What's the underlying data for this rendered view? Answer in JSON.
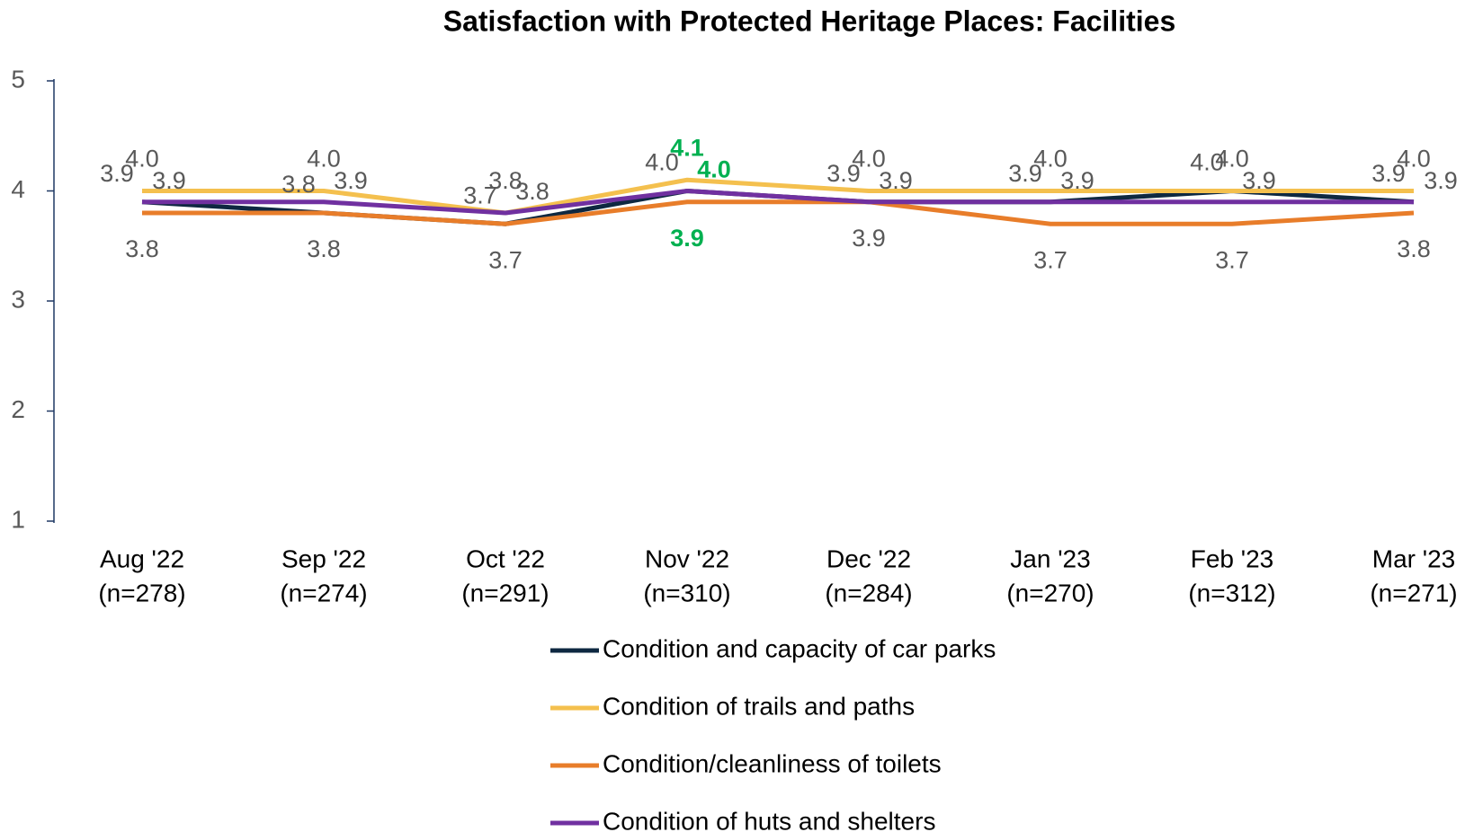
{
  "chart_data": {
    "type": "line",
    "title": "Satisfaction with Protected Heritage Places: Facilities",
    "categories": [
      "Aug '22",
      "Sep '22",
      "Oct '22",
      "Nov '22",
      "Dec '22",
      "Jan '23",
      "Feb '23",
      "Mar '23"
    ],
    "sample_sizes": [
      "(n=278)",
      "(n=274)",
      "(n=291)",
      "(n=310)",
      "(n=284)",
      "(n=270)",
      "(n=312)",
      "(n=271)"
    ],
    "ylim": [
      1,
      5
    ],
    "yticks": [
      1,
      2,
      3,
      4,
      5
    ],
    "grid": false,
    "legend": "bottom",
    "series": [
      {
        "name": "Condition and capacity of car parks",
        "color": "#0e2841",
        "values": [
          3.9,
          3.8,
          3.7,
          4.0,
          3.9,
          3.9,
          4.0,
          3.9
        ],
        "value_labels": [
          "3.9",
          "3.8",
          "3.7",
          "4.0",
          "3.9",
          "3.9",
          "4.0",
          "3.9"
        ],
        "value_label_colors": [
          "#595959",
          "#595959",
          "#595959",
          "#595959",
          "#595959",
          "#595959",
          "#595959",
          "#595959"
        ]
      },
      {
        "name": "Condition of trails and paths",
        "color": "#f4c04e",
        "values": [
          4.0,
          4.0,
          3.8,
          4.1,
          4.0,
          4.0,
          4.0,
          4.0
        ],
        "value_labels": [
          "4.0",
          "4.0",
          "3.8",
          "4.1",
          "4.0",
          "4.0",
          "4.0",
          "4.0"
        ],
        "value_label_colors": [
          "#595959",
          "#595959",
          "#595959",
          "#00b050",
          "#595959",
          "#595959",
          "#595959",
          "#595959"
        ]
      },
      {
        "name": "Condition/cleanliness of toilets",
        "color": "#e87d2a",
        "values": [
          3.8,
          3.8,
          3.7,
          3.9,
          3.9,
          3.7,
          3.7,
          3.8
        ],
        "value_labels": [
          "3.8",
          "3.8",
          "3.7",
          "3.9",
          "3.9",
          "3.7",
          "3.7",
          "3.8"
        ],
        "value_label_colors": [
          "#595959",
          "#595959",
          "#595959",
          "#00b050",
          "#595959",
          "#595959",
          "#595959",
          "#595959"
        ]
      },
      {
        "name": "Condition of huts and shelters",
        "color": "#7030a0",
        "values": [
          3.9,
          3.9,
          3.8,
          4.0,
          3.9,
          3.9,
          3.9,
          3.9
        ],
        "value_labels": [
          "3.9",
          "3.9",
          "3.8",
          "4.0",
          "3.9",
          "3.9",
          "3.9",
          "3.9"
        ],
        "value_label_colors": [
          "#595959",
          "#595959",
          "#595959",
          "#00b050",
          "#595959",
          "#595959",
          "#595959",
          "#595959"
        ]
      }
    ]
  }
}
